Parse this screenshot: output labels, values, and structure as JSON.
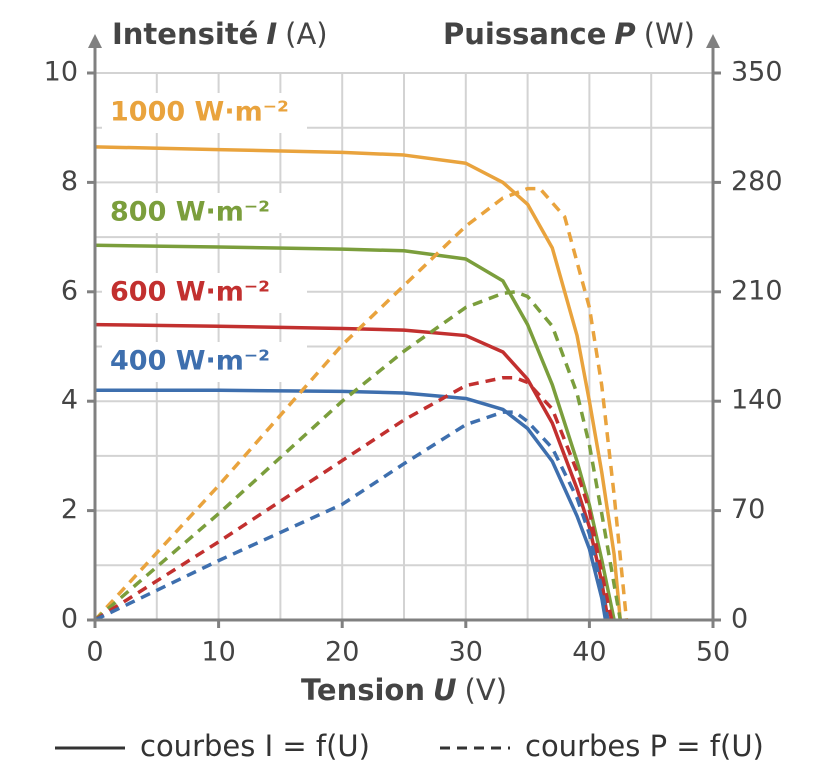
{
  "chart_data": {
    "type": "line",
    "ylabel": [
      "Intensité",
      "I",
      "(A)"
    ],
    "y2label": [
      "Puissance",
      "P",
      "(W)"
    ],
    "xlabel": [
      "Tension",
      "U",
      "(V)"
    ],
    "xlim": [
      0,
      50
    ],
    "xticks": [
      0,
      10,
      20,
      30,
      40,
      50
    ],
    "xgrid_step": 5,
    "ylim": [
      0,
      10
    ],
    "yticks": [
      0,
      2,
      4,
      6,
      8,
      10
    ],
    "ygrid_step": 1,
    "y2lim": [
      0,
      350
    ],
    "y2ticks": [
      0,
      70,
      140,
      210,
      280,
      350
    ],
    "grid": true,
    "series": [
      {
        "name": "1000 W·m⁻²",
        "color": "#e9a33d",
        "x": [
          0,
          10,
          20,
          25,
          30,
          33,
          35,
          37,
          39,
          40,
          41,
          42,
          42.5
        ],
        "values": [
          8.65,
          8.6,
          8.55,
          8.5,
          8.35,
          8.0,
          7.6,
          6.8,
          5.2,
          4.0,
          2.7,
          1.2,
          0
        ]
      },
      {
        "name": "800 W·m⁻²",
        "color": "#7b9e3c",
        "x": [
          0,
          10,
          20,
          25,
          30,
          33,
          35,
          37,
          39,
          40,
          41,
          42
        ],
        "values": [
          6.85,
          6.82,
          6.78,
          6.75,
          6.6,
          6.2,
          5.4,
          4.3,
          2.9,
          2.1,
          1.1,
          0
        ]
      },
      {
        "name": "600 W·m⁻²",
        "color": "#c2302f",
        "x": [
          0,
          10,
          20,
          25,
          30,
          33,
          35,
          37,
          39,
          40,
          41,
          41.5
        ],
        "values": [
          5.4,
          5.37,
          5.33,
          5.3,
          5.2,
          4.9,
          4.4,
          3.6,
          2.4,
          1.7,
          0.7,
          0
        ]
      },
      {
        "name": "400 W·m⁻²",
        "color": "#3e6fae",
        "x": [
          0,
          10,
          20,
          25,
          30,
          33,
          35,
          37,
          39,
          40,
          41,
          41.3
        ],
        "values": [
          4.2,
          4.2,
          4.18,
          4.15,
          4.05,
          3.85,
          3.5,
          2.9,
          1.9,
          1.3,
          0.4,
          0
        ]
      },
      {
        "color": "#e9a33d",
        "axis": "y2",
        "dashed": true,
        "x": [
          0,
          10,
          20,
          25,
          30,
          33,
          35,
          36,
          38,
          40,
          41,
          42,
          43
        ],
        "values": [
          0,
          86,
          176,
          214,
          252,
          270,
          276,
          276,
          258,
          200,
          150,
          80,
          0
        ]
      },
      {
        "color": "#7b9e3c",
        "axis": "y2",
        "dashed": true,
        "x": [
          0,
          10,
          20,
          25,
          30,
          33,
          34,
          35,
          37,
          39,
          40,
          41,
          42.5
        ],
        "values": [
          0,
          68,
          140,
          172,
          200,
          209,
          210,
          207,
          188,
          145,
          112,
          68,
          0
        ]
      },
      {
        "color": "#c2302f",
        "axis": "y2",
        "dashed": true,
        "x": [
          0,
          10,
          20,
          25,
          30,
          33,
          34,
          35,
          37,
          39,
          40,
          41,
          41.8
        ],
        "values": [
          0,
          50,
          102,
          128,
          150,
          155,
          155,
          152,
          135,
          95,
          70,
          30,
          0
        ]
      },
      {
        "color": "#3e6fae",
        "axis": "y2",
        "dashed": true,
        "x": [
          0,
          10,
          20,
          25,
          30,
          33,
          34,
          35,
          37,
          39,
          40,
          41,
          41.5
        ],
        "values": [
          0,
          38,
          74,
          100,
          125,
          133,
          133,
          127,
          110,
          78,
          55,
          20,
          0
        ]
      }
    ],
    "legend": [
      {
        "label": "courbes I = f(U)",
        "dashed": false
      },
      {
        "label": "courbes P = f(U)",
        "dashed": true
      }
    ]
  }
}
